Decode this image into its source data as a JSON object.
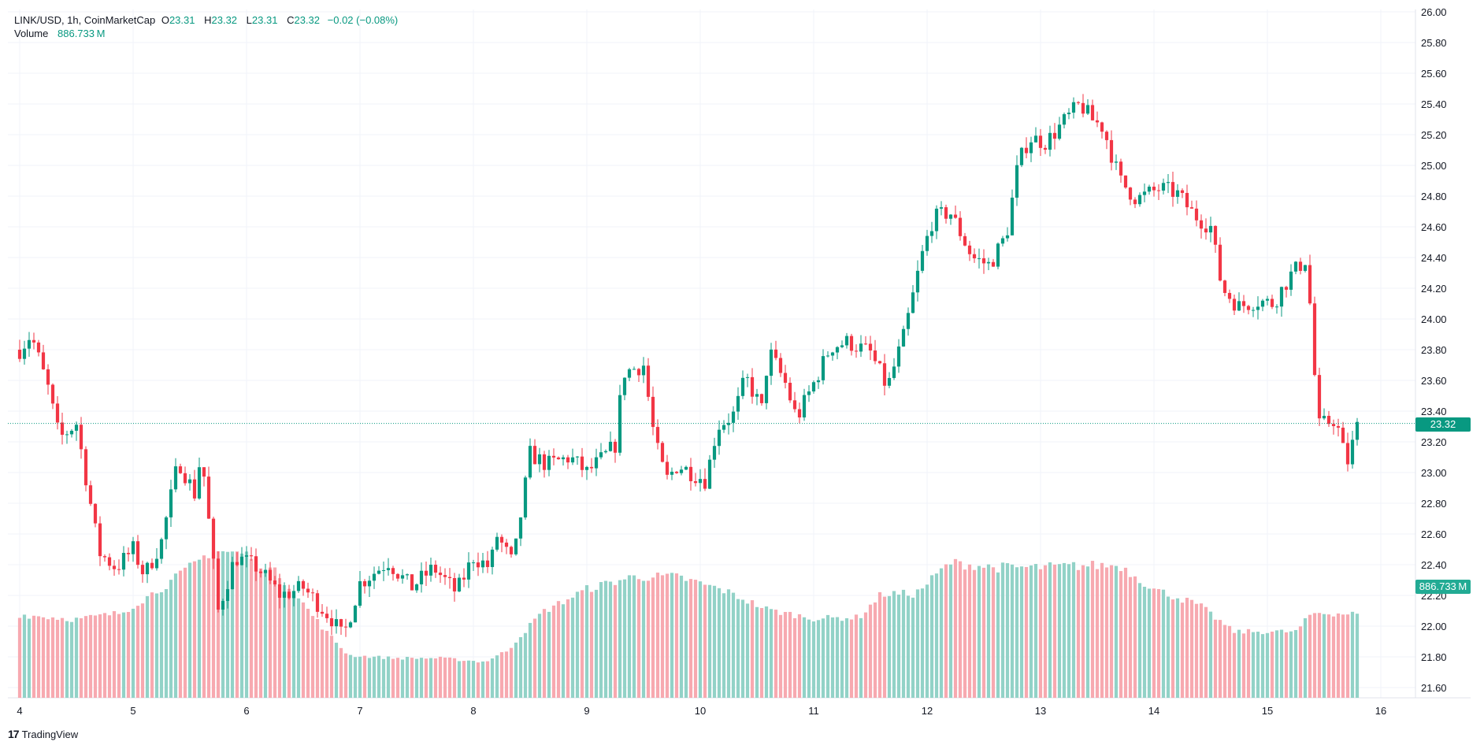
{
  "legend": {
    "symbol": "LINK/USD, 1h, CoinMarketCap",
    "open_label": "O",
    "open": "23.31",
    "high_label": "H",
    "high": "23.32",
    "low_label": "L",
    "low": "23.31",
    "close_label": "C",
    "close": "23.32",
    "change": "−0.02 (−0.08%)",
    "volume_label": "Volume",
    "volume": "886.733 M"
  },
  "price_badge": "23.32",
  "volume_badge": "886.733 M",
  "brand": {
    "logo": "17",
    "name": "TradingView"
  },
  "colors": {
    "up": "#089981",
    "down": "#f23645",
    "up_volume": "#92d2c7",
    "down_volume": "#f7a9b0",
    "grid": "#f0f3fa",
    "text": "#131722"
  },
  "chart_data": {
    "type": "candlestick",
    "interval": "1h",
    "y_axis": {
      "range": [
        21.52,
        26.02
      ],
      "ticks": [
        "26.00",
        "25.80",
        "25.60",
        "25.40",
        "25.20",
        "25.00",
        "24.80",
        "24.60",
        "24.40",
        "24.20",
        "24.00",
        "23.80",
        "23.60",
        "23.40",
        "23.20",
        "23.00",
        "22.80",
        "22.60",
        "22.40",
        "22.20",
        "22.00",
        "21.80",
        "21.60"
      ]
    },
    "x_axis": {
      "ticks": [
        "4",
        "5",
        "6",
        "7",
        "8",
        "9",
        "10",
        "11",
        "12",
        "13",
        "14",
        "15",
        "16"
      ]
    },
    "last_price": 23.32,
    "close_path": [
      {
        "d": 4.0,
        "p": 23.8
      },
      {
        "d": 4.1,
        "p": 23.9
      },
      {
        "d": 4.25,
        "p": 23.55
      },
      {
        "d": 4.35,
        "p": 23.22
      },
      {
        "d": 4.5,
        "p": 23.32
      },
      {
        "d": 4.7,
        "p": 22.48
      },
      {
        "d": 4.85,
        "p": 22.38
      },
      {
        "d": 5.0,
        "p": 22.5
      },
      {
        "d": 5.1,
        "p": 22.33
      },
      {
        "d": 5.25,
        "p": 22.55
      },
      {
        "d": 5.4,
        "p": 23.08
      },
      {
        "d": 5.55,
        "p": 22.85
      },
      {
        "d": 5.6,
        "p": 23.15
      },
      {
        "d": 5.75,
        "p": 22.1
      },
      {
        "d": 5.9,
        "p": 22.45
      },
      {
        "d": 6.1,
        "p": 22.38
      },
      {
        "d": 6.3,
        "p": 22.2
      },
      {
        "d": 6.5,
        "p": 22.25
      },
      {
        "d": 6.75,
        "p": 22.05
      },
      {
        "d": 6.85,
        "p": 21.92
      },
      {
        "d": 7.0,
        "p": 22.28
      },
      {
        "d": 7.25,
        "p": 22.42
      },
      {
        "d": 7.45,
        "p": 22.25
      },
      {
        "d": 7.65,
        "p": 22.38
      },
      {
        "d": 7.85,
        "p": 22.22
      },
      {
        "d": 8.0,
        "p": 22.45
      },
      {
        "d": 8.15,
        "p": 22.38
      },
      {
        "d": 8.2,
        "p": 22.6
      },
      {
        "d": 8.35,
        "p": 22.4
      },
      {
        "d": 8.5,
        "p": 23.12
      },
      {
        "d": 8.65,
        "p": 23.05
      },
      {
        "d": 8.85,
        "p": 23.1
      },
      {
        "d": 9.0,
        "p": 23.0
      },
      {
        "d": 9.15,
        "p": 23.1
      },
      {
        "d": 9.25,
        "p": 23.18
      },
      {
        "d": 9.32,
        "p": 23.65
      },
      {
        "d": 9.5,
        "p": 23.7
      },
      {
        "d": 9.6,
        "p": 23.2
      },
      {
        "d": 9.7,
        "p": 22.95
      },
      {
        "d": 9.8,
        "p": 23.05
      },
      {
        "d": 10.05,
        "p": 22.95
      },
      {
        "d": 10.15,
        "p": 23.3
      },
      {
        "d": 10.3,
        "p": 23.38
      },
      {
        "d": 10.4,
        "p": 23.62
      },
      {
        "d": 10.55,
        "p": 23.4
      },
      {
        "d": 10.6,
        "p": 23.8
      },
      {
        "d": 10.75,
        "p": 23.58
      },
      {
        "d": 10.85,
        "p": 23.35
      },
      {
        "d": 11.0,
        "p": 23.58
      },
      {
        "d": 11.15,
        "p": 23.82
      },
      {
        "d": 11.3,
        "p": 23.85
      },
      {
        "d": 11.5,
        "p": 23.78
      },
      {
        "d": 11.65,
        "p": 23.55
      },
      {
        "d": 11.8,
        "p": 23.9
      },
      {
        "d": 11.95,
        "p": 24.4
      },
      {
        "d": 12.05,
        "p": 24.65
      },
      {
        "d": 12.2,
        "p": 24.7
      },
      {
        "d": 12.4,
        "p": 24.4
      },
      {
        "d": 12.55,
        "p": 24.35
      },
      {
        "d": 12.7,
        "p": 24.55
      },
      {
        "d": 12.8,
        "p": 25.0
      },
      {
        "d": 12.9,
        "p": 25.18
      },
      {
        "d": 13.05,
        "p": 25.15
      },
      {
        "d": 13.2,
        "p": 25.28
      },
      {
        "d": 13.35,
        "p": 25.4
      },
      {
        "d": 13.45,
        "p": 25.3
      },
      {
        "d": 13.55,
        "p": 25.25
      },
      {
        "d": 13.7,
        "p": 24.9
      },
      {
        "d": 13.85,
        "p": 24.78
      },
      {
        "d": 14.05,
        "p": 24.85
      },
      {
        "d": 14.2,
        "p": 24.82
      },
      {
        "d": 14.35,
        "p": 24.68
      },
      {
        "d": 14.5,
        "p": 24.6
      },
      {
        "d": 14.6,
        "p": 24.2
      },
      {
        "d": 14.75,
        "p": 24.08
      },
      {
        "d": 14.9,
        "p": 24.12
      },
      {
        "d": 15.05,
        "p": 24.1
      },
      {
        "d": 15.2,
        "p": 24.28
      },
      {
        "d": 15.35,
        "p": 24.4
      },
      {
        "d": 15.4,
        "p": 23.8
      },
      {
        "d": 15.45,
        "p": 23.3
      },
      {
        "d": 15.6,
        "p": 23.35
      },
      {
        "d": 15.7,
        "p": 23.05
      },
      {
        "d": 15.8,
        "p": 23.32
      }
    ],
    "volume": {
      "unit": "M",
      "last": 886.733,
      "range": [
        0,
        2100
      ],
      "level_path": [
        {
          "d": 4.0,
          "v": 880
        },
        {
          "d": 4.5,
          "v": 830
        },
        {
          "d": 4.9,
          "v": 900
        },
        {
          "d": 5.3,
          "v": 1200
        },
        {
          "d": 5.7,
          "v": 1560
        },
        {
          "d": 6.0,
          "v": 1520
        },
        {
          "d": 6.3,
          "v": 1290
        },
        {
          "d": 6.7,
          "v": 700
        },
        {
          "d": 6.9,
          "v": 450
        },
        {
          "d": 7.3,
          "v": 420
        },
        {
          "d": 7.7,
          "v": 420
        },
        {
          "d": 8.1,
          "v": 380
        },
        {
          "d": 8.3,
          "v": 500
        },
        {
          "d": 8.6,
          "v": 900
        },
        {
          "d": 9.0,
          "v": 1150
        },
        {
          "d": 9.4,
          "v": 1280
        },
        {
          "d": 9.8,
          "v": 1280
        },
        {
          "d": 10.2,
          "v": 1140
        },
        {
          "d": 10.6,
          "v": 930
        },
        {
          "d": 11.0,
          "v": 840
        },
        {
          "d": 11.4,
          "v": 850
        },
        {
          "d": 11.6,
          "v": 1100
        },
        {
          "d": 11.9,
          "v": 1100
        },
        {
          "d": 12.2,
          "v": 1430
        },
        {
          "d": 12.6,
          "v": 1380
        },
        {
          "d": 13.0,
          "v": 1380
        },
        {
          "d": 13.4,
          "v": 1400
        },
        {
          "d": 13.7,
          "v": 1400
        },
        {
          "d": 14.0,
          "v": 1150
        },
        {
          "d": 14.4,
          "v": 980
        },
        {
          "d": 14.7,
          "v": 700
        },
        {
          "d": 15.0,
          "v": 700
        },
        {
          "d": 15.25,
          "v": 700
        },
        {
          "d": 15.4,
          "v": 900
        },
        {
          "d": 15.8,
          "v": 887
        }
      ]
    }
  }
}
